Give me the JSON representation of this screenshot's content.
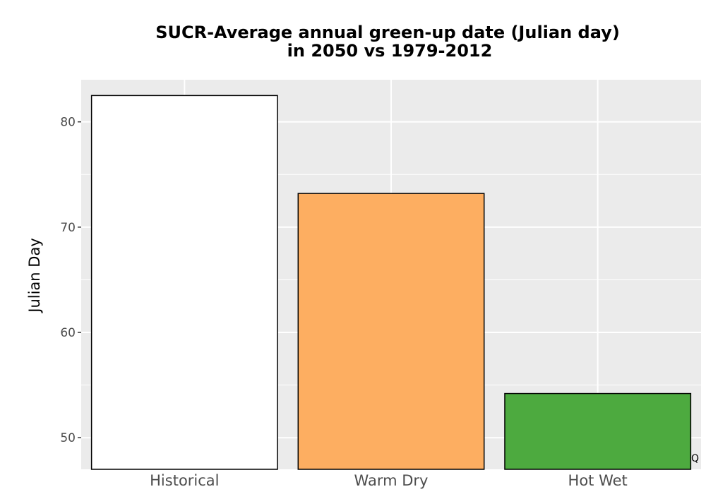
{
  "chart_data": {
    "type": "bar",
    "title_lines": [
      "SUCR-Average annual green-up date (Julian day)",
      "in 2050 vs 1979-2012"
    ],
    "categories": [
      "Historical",
      "Warm Dry",
      "Hot Wet"
    ],
    "values": [
      82.5,
      73.2,
      54.2
    ],
    "colors": [
      "#ffffff",
      "#fdae61",
      "#4daa3f"
    ],
    "bar_outline": "#000000",
    "xlabel": "",
    "ylabel": "Julian Day",
    "yticks": [
      50,
      60,
      70,
      80
    ],
    "ytick_labels": [
      "50",
      "60",
      "70",
      "80"
    ],
    "ylim": [
      47,
      84
    ],
    "grid": true,
    "panel_background": "#ebebeb",
    "grid_color": "#ffffff"
  },
  "corner_note": "Q"
}
